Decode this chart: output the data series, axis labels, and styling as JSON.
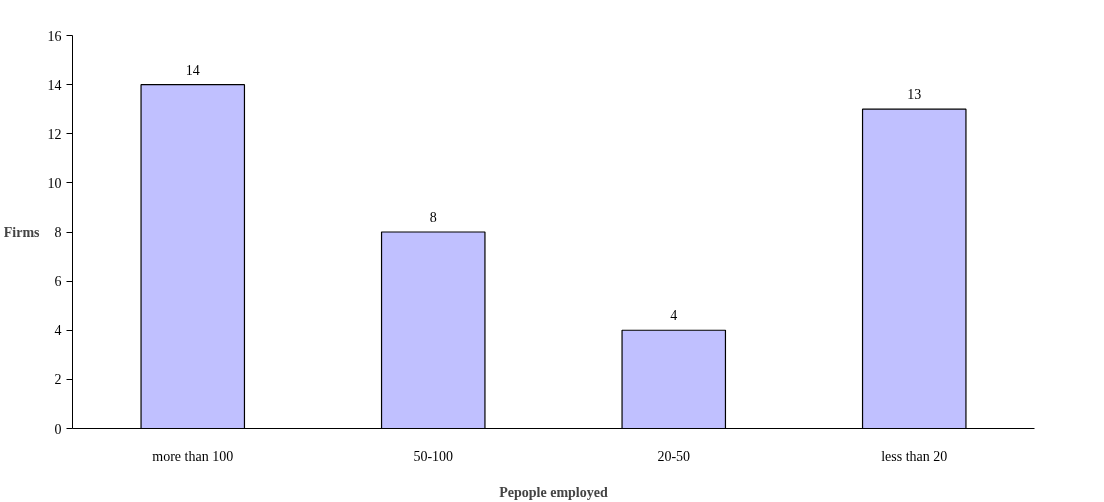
{
  "chart_data": {
    "type": "bar",
    "xlabel": "Pepople employed",
    "ylabel": "Firms",
    "categories": [
      "more than 100",
      "50-100",
      "20-50",
      "less than 20"
    ],
    "values": [
      14,
      8,
      4,
      13
    ],
    "color": "#c0c0ff",
    "ylim": [
      0,
      16
    ],
    "yticks": [
      0,
      2,
      4,
      6,
      8,
      10,
      12,
      14,
      16
    ],
    "grid": false,
    "data_labels": true
  }
}
